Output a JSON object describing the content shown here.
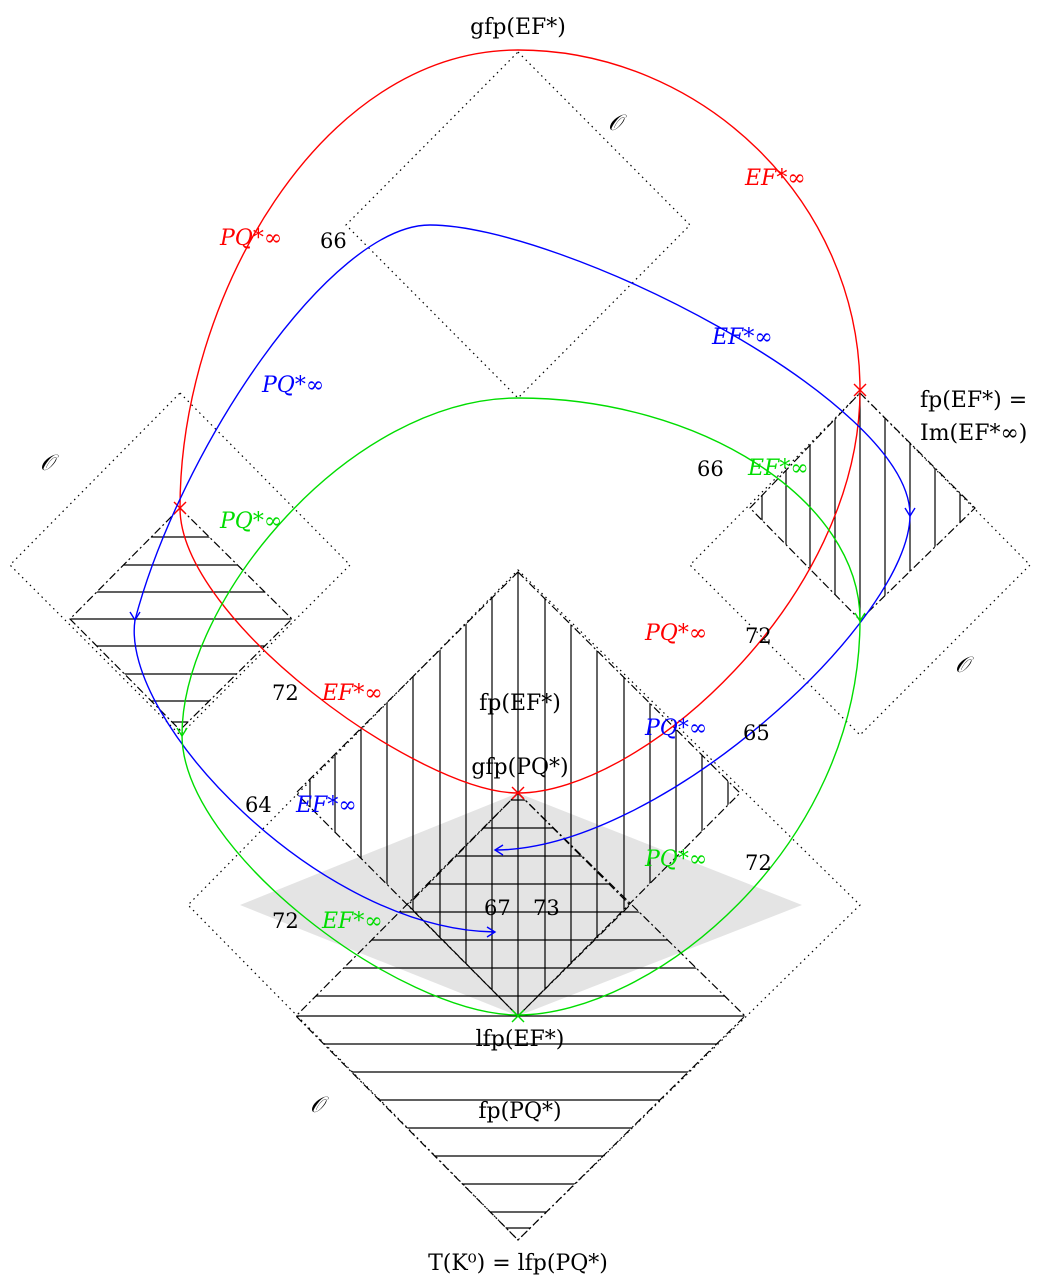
{
  "labels": {
    "top": "gfp(EF*)",
    "right_eq_line1": "fp(EF*) =",
    "right_eq_line2": "Im(EF*∞)",
    "center_upper": "fp(EF*)",
    "center_gfp": "gfp(PQ*)",
    "lfp_ef": "lfp(EF*)",
    "fp_pq": "fp(PQ*)",
    "bottom": "T(K⁰) = lfp(PQ*)"
  },
  "script_o": [
    "𝒪",
    "𝒪",
    "𝒪",
    "𝒪"
  ],
  "curve_labels": [
    {
      "text": "PQ*∞",
      "color": "red"
    },
    {
      "text": "EF*∞",
      "color": "red"
    },
    {
      "text": "PQ*∞",
      "color": "blue"
    },
    {
      "text": "EF*∞",
      "color": "blue"
    },
    {
      "text": "PQ*∞",
      "color": "green"
    },
    {
      "text": "EF*∞",
      "color": "green"
    },
    {
      "text": "PQ*∞",
      "color": "red"
    },
    {
      "text": "EF*∞",
      "color": "red"
    },
    {
      "text": "PQ*∞",
      "color": "blue"
    },
    {
      "text": "EF*∞",
      "color": "blue"
    },
    {
      "text": "PQ*∞",
      "color": "green"
    },
    {
      "text": "EF*∞",
      "color": "green"
    }
  ],
  "numbers": [
    "66",
    "66",
    "72",
    "65",
    "72",
    "72",
    "64",
    "72",
    "67",
    "73"
  ],
  "colors": {
    "red": "#ff0000",
    "blue": "#0000ff",
    "green": "#00dd00",
    "shade": "#e4e4e4"
  }
}
